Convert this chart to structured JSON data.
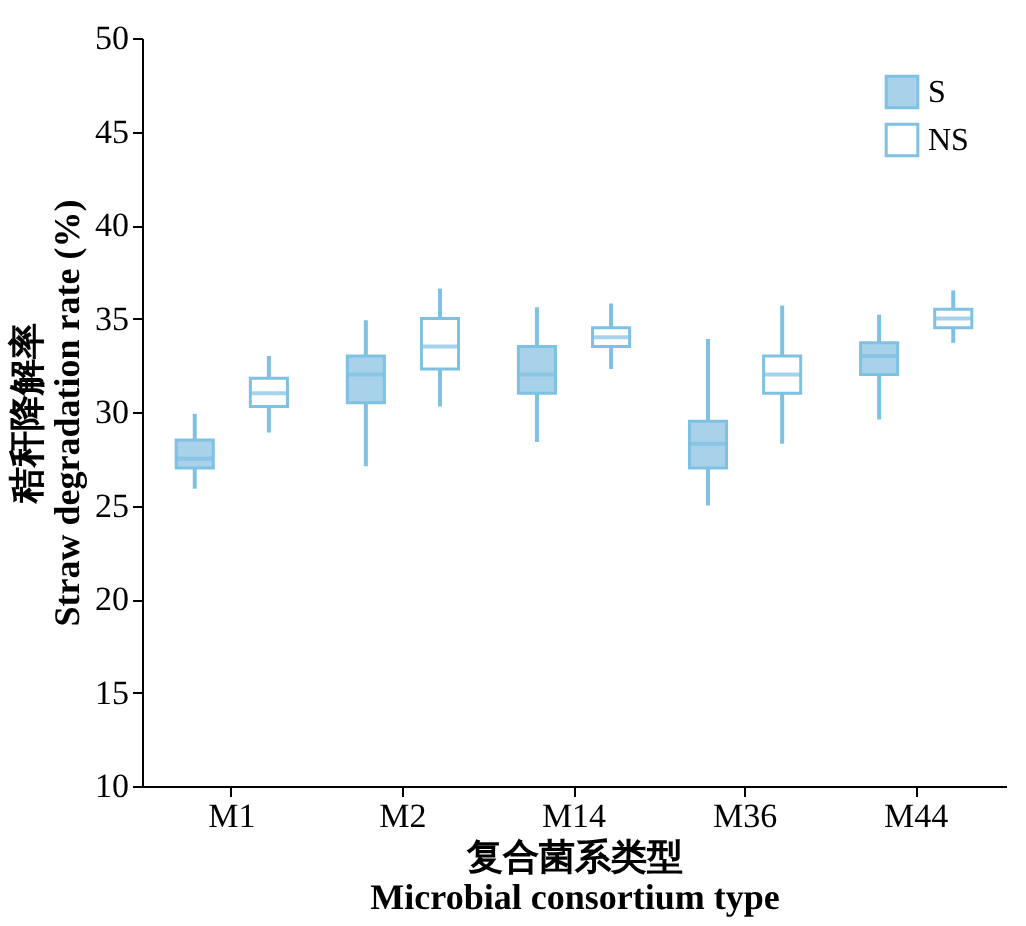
{
  "chart_data": {
    "type": "box",
    "xlabel": "复合菌系类型\nMicrobial consortium type",
    "ylabel": "秸秆降解率\nStraw degradation rate (%)",
    "categories": [
      "M1",
      "M2",
      "M14",
      "M36",
      "M44"
    ],
    "series": [
      {
        "name": "S",
        "color": "#a8d1ea",
        "boxes": [
          {
            "low": 25.9,
            "q1": 27,
            "median": 27.5,
            "q3": 28.5,
            "high": 29.9
          },
          {
            "low": 27.1,
            "q1": 30.5,
            "median": 32,
            "q3": 33,
            "high": 34.9
          },
          {
            "low": 28.4,
            "q1": 31,
            "median": 32,
            "q3": 33.5,
            "high": 35.6
          },
          {
            "low": 25,
            "q1": 27,
            "median": 28.3,
            "q3": 29.5,
            "high": 33.9
          },
          {
            "low": 29.6,
            "q1": 32,
            "median": 33,
            "q3": 33.7,
            "high": 35.2
          }
        ]
      },
      {
        "name": "NS",
        "color": "#ffffff",
        "boxes": [
          {
            "low": 28.9,
            "q1": 30.3,
            "median": 31,
            "q3": 31.8,
            "high": 33
          },
          {
            "low": 30.3,
            "q1": 32.3,
            "median": 33.5,
            "q3": 35,
            "high": 36.6
          },
          {
            "low": 32.3,
            "q1": 33.5,
            "median": 34,
            "q3": 34.5,
            "high": 35.8
          },
          {
            "low": 28.3,
            "q1": 31,
            "median": 32,
            "q3": 33,
            "high": 35.7
          },
          {
            "low": 33.7,
            "q1": 34.5,
            "median": 35,
            "q3": 35.5,
            "high": 36.5
          }
        ]
      }
    ],
    "ylim": [
      10,
      50
    ],
    "yticks": [
      10,
      15,
      20,
      25,
      30,
      35,
      40,
      45,
      50
    ],
    "grid": false,
    "legend": "top right"
  }
}
